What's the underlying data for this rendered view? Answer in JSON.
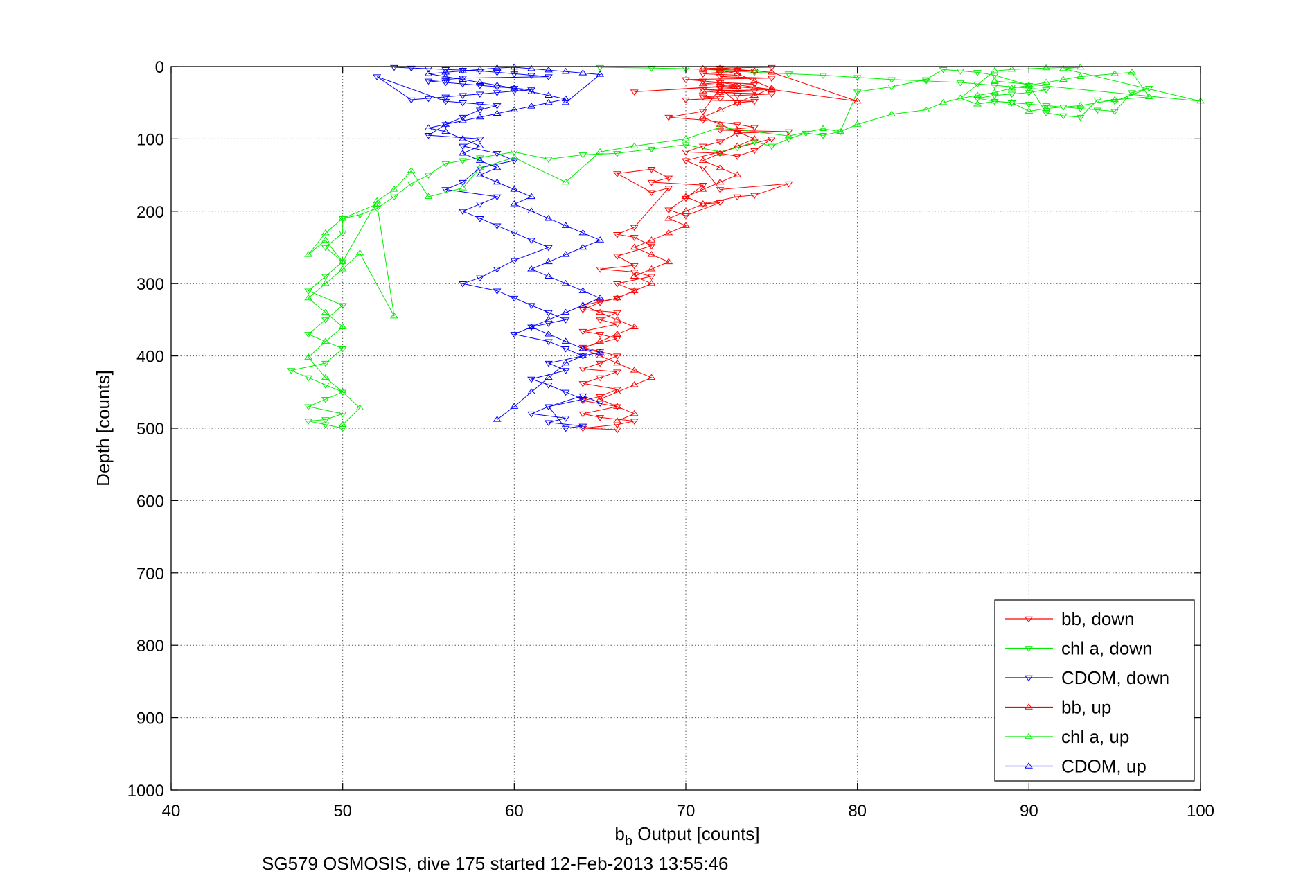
{
  "chart_data": {
    "type": "scatter",
    "xlabel_base": "b",
    "xlabel_sub": "b",
    "xlabel_rest": " Output [counts]",
    "ylabel": "Depth [counts]",
    "caption": "SG579 OSMOSIS, dive 175 started 12-Feb-2013 13:55:46",
    "xlim": [
      40,
      100
    ],
    "ylim": [
      0,
      1000
    ],
    "y_reversed": true,
    "grid": true,
    "legend_position": "bottom-right",
    "x_ticks": [
      "40",
      "50",
      "60",
      "70",
      "80",
      "90",
      "100"
    ],
    "x_tick_values": [
      40,
      50,
      60,
      70,
      80,
      90,
      100
    ],
    "y_ticks": [
      "0",
      "100",
      "200",
      "300",
      "400",
      "500",
      "600",
      "700",
      "800",
      "900",
      "1000"
    ],
    "y_tick_values": [
      0,
      100,
      200,
      300,
      400,
      500,
      600,
      700,
      800,
      900,
      1000
    ],
    "colors": {
      "bb": "#ff0000",
      "chl": "#00ee00",
      "cdom": "#0000ff",
      "axis": "#000000",
      "grid": "#555555"
    },
    "series": [
      {
        "name": "bb, down",
        "color": "#ff0000",
        "marker": "down",
        "connected": true,
        "x": [
          75,
          72,
          71,
          73,
          74,
          72,
          71,
          73,
          72,
          75,
          70,
          71,
          72,
          74,
          73,
          67,
          72,
          73,
          71,
          74,
          72,
          75,
          73,
          71,
          72,
          70,
          74,
          73,
          72,
          71,
          69,
          71,
          73,
          74,
          72,
          76,
          73,
          72,
          71,
          70,
          72,
          73,
          74,
          75,
          70,
          71,
          72,
          76,
          74,
          73,
          71,
          72,
          70,
          69,
          70,
          71,
          68,
          69,
          68,
          66,
          68,
          69,
          67,
          66,
          67,
          68,
          66,
          67,
          65,
          67,
          68,
          66,
          67,
          66,
          65,
          64,
          66,
          65,
          66,
          64,
          65,
          66,
          64,
          65,
          66,
          65,
          64,
          66,
          65,
          64,
          66,
          65,
          64,
          66,
          64,
          65,
          67,
          66,
          64,
          66
        ],
        "y": [
          1,
          2,
          3,
          5,
          6,
          8,
          10,
          12,
          14,
          16,
          18,
          20,
          22,
          24,
          26,
          35,
          28,
          30,
          32,
          34,
          36,
          38,
          40,
          42,
          44,
          46,
          48,
          50,
          30,
          62,
          70,
          74,
          80,
          84,
          88,
          90,
          92,
          104,
          110,
          118,
          120,
          124,
          116,
          100,
          130,
          140,
          170,
          162,
          178,
          180,
          190,
          188,
          206,
          198,
          182,
          164,
          160,
          154,
          142,
          148,
          174,
          168,
          222,
          232,
          236,
          248,
          262,
          275,
          280,
          284,
          290,
          300,
          310,
          320,
          326,
          336,
          340,
          350,
          356,
          366,
          370,
          376,
          388,
          394,
          400,
          410,
          418,
          422,
          430,
          438,
          446,
          456,
          462,
          470,
          480,
          485,
          490,
          495,
          500,
          502
        ]
      },
      {
        "name": "chl a, down",
        "color": "#00ee00",
        "marker": "down",
        "connected": true,
        "x": [
          65,
          68,
          70,
          72,
          74,
          76,
          78,
          80,
          82,
          84,
          86,
          87,
          88,
          89,
          90,
          91,
          90,
          89,
          88,
          87,
          88,
          89,
          90,
          91,
          92,
          93,
          94,
          95,
          96,
          97,
          95,
          94,
          93,
          92,
          91,
          90,
          88,
          87,
          86,
          85,
          84,
          82,
          80,
          79,
          78,
          77,
          76,
          75,
          74,
          73,
          72,
          70,
          68,
          66,
          64,
          62,
          60,
          58,
          57,
          56,
          55,
          54,
          53,
          52,
          51,
          50,
          50,
          49,
          50,
          49,
          48,
          50,
          49,
          48,
          50,
          49,
          47,
          48,
          49,
          50,
          49,
          48,
          50,
          49,
          48,
          49,
          50
        ],
        "y": [
          1,
          2,
          3,
          5,
          8,
          10,
          12,
          15,
          18,
          20,
          22,
          24,
          26,
          28,
          30,
          32,
          36,
          38,
          40,
          44,
          48,
          50,
          52,
          54,
          56,
          58,
          60,
          62,
          36,
          30,
          48,
          46,
          70,
          68,
          64,
          26,
          12,
          8,
          6,
          4,
          18,
          28,
          35,
          90,
          95,
          92,
          100,
          110,
          104,
          112,
          118,
          108,
          114,
          120,
          122,
          128,
          118,
          126,
          130,
          134,
          150,
          162,
          180,
          196,
          205,
          210,
          230,
          250,
          270,
          290,
          310,
          330,
          350,
          370,
          390,
          410,
          420,
          430,
          440,
          450,
          460,
          470,
          480,
          488,
          490,
          495,
          500
        ]
      },
      {
        "name": "CDOM, down",
        "color": "#0000ff",
        "marker": "down",
        "connected": true,
        "x": [
          53,
          54,
          55,
          56,
          57,
          58,
          59,
          60,
          61,
          62,
          57,
          56,
          55,
          56,
          57,
          58,
          59,
          60,
          61,
          60,
          59,
          58,
          57,
          56,
          55,
          54,
          52,
          56,
          57,
          58,
          59,
          58,
          57,
          56,
          55,
          58,
          57,
          59,
          60,
          58,
          57,
          56,
          59,
          58,
          57,
          58,
          59,
          60,
          61,
          62,
          60,
          59,
          58,
          57,
          59,
          60,
          61,
          62,
          63,
          62,
          61,
          60,
          62,
          63,
          64,
          62,
          63,
          61,
          62,
          63,
          64,
          62,
          61,
          63,
          62,
          64,
          63,
          62,
          64,
          65
        ],
        "y": [
          1,
          2,
          3,
          4,
          5,
          6,
          8,
          10,
          12,
          14,
          16,
          18,
          20,
          22,
          24,
          26,
          28,
          30,
          32,
          34,
          36,
          38,
          40,
          42,
          44,
          46,
          14,
          48,
          50,
          52,
          54,
          60,
          70,
          80,
          95,
          100,
          110,
          120,
          130,
          140,
          160,
          170,
          180,
          190,
          200,
          210,
          220,
          230,
          240,
          250,
          268,
          280,
          292,
          300,
          310,
          320,
          330,
          340,
          350,
          355,
          360,
          370,
          380,
          390,
          400,
          410,
          420,
          432,
          440,
          450,
          460,
          470,
          480,
          486,
          492,
          497,
          500,
          470,
          455,
          465
        ]
      },
      {
        "name": "bb, up",
        "color": "#ff0000",
        "marker": "up",
        "connected": true,
        "x": [
          66,
          67,
          66,
          65,
          66,
          67,
          68,
          67,
          66,
          65,
          64,
          65,
          66,
          67,
          66,
          65,
          64,
          66,
          67,
          68,
          67,
          68,
          69,
          68,
          67,
          68,
          69,
          70,
          69,
          70,
          71,
          70,
          71,
          72,
          73,
          72,
          71,
          72,
          73,
          74,
          73,
          72,
          71,
          72,
          73,
          74,
          75,
          74,
          73,
          72,
          71,
          72,
          73,
          74,
          75,
          80,
          72,
          71,
          72,
          73,
          74,
          75,
          71,
          72
        ],
        "y": [
          490,
          480,
          470,
          460,
          450,
          440,
          430,
          420,
          410,
          400,
          390,
          380,
          370,
          360,
          350,
          340,
          330,
          320,
          310,
          300,
          290,
          280,
          270,
          260,
          250,
          240,
          230,
          220,
          210,
          200,
          190,
          180,
          170,
          160,
          150,
          140,
          130,
          120,
          110,
          100,
          90,
          80,
          70,
          60,
          50,
          40,
          30,
          20,
          10,
          5,
          3,
          2,
          4,
          6,
          8,
          48,
          22,
          24,
          26,
          28,
          30,
          32,
          34,
          36
        ]
      },
      {
        "name": "chl a, up",
        "color": "#00ee00",
        "marker": "up",
        "connected": true,
        "x": [
          50,
          51,
          50,
          49,
          48,
          49,
          50,
          49,
          48,
          49,
          50,
          51,
          53,
          52,
          50,
          49,
          48,
          49,
          50,
          52,
          53,
          54,
          55,
          57,
          58,
          60,
          63,
          65,
          67,
          70,
          72,
          76,
          78,
          79,
          80,
          82,
          84,
          85,
          86,
          87,
          88,
          89,
          90,
          91,
          92,
          93,
          95,
          96,
          97,
          95,
          93,
          91,
          90,
          89,
          88,
          87,
          86,
          88,
          89,
          91,
          93,
          92,
          100,
          88
        ],
        "y": [
          495,
          472,
          450,
          430,
          402,
          380,
          360,
          340,
          320,
          300,
          280,
          258,
          345,
          190,
          210,
          230,
          260,
          240,
          270,
          186,
          170,
          144,
          180,
          168,
          140,
          126,
          160,
          118,
          110,
          100,
          84,
          96,
          86,
          90,
          80,
          66,
          60,
          50,
          44,
          40,
          36,
          30,
          26,
          22,
          18,
          14,
          10,
          8,
          42,
          46,
          54,
          58,
          62,
          50,
          48,
          52,
          44,
          6,
          4,
          2,
          1,
          3,
          48,
          20
        ]
      },
      {
        "name": "CDOM, up",
        "color": "#0000ff",
        "marker": "up",
        "connected": true,
        "x": [
          59,
          60,
          61,
          62,
          63,
          64,
          65,
          64,
          63,
          62,
          61,
          62,
          63,
          64,
          65,
          64,
          63,
          62,
          61,
          62,
          63,
          64,
          65,
          64,
          63,
          62,
          61,
          60,
          61,
          60,
          59,
          58,
          59,
          58,
          57,
          58,
          57,
          56,
          55,
          56,
          57,
          58,
          59,
          60,
          61,
          62,
          63,
          62,
          61,
          60,
          59,
          58,
          57,
          56,
          55,
          56,
          57,
          58,
          59,
          60,
          61,
          62,
          63,
          64,
          65,
          63
        ],
        "y": [
          488,
          470,
          450,
          430,
          410,
          400,
          395,
          390,
          380,
          370,
          360,
          350,
          340,
          330,
          320,
          310,
          300,
          290,
          280,
          270,
          260,
          250,
          240,
          230,
          220,
          210,
          200,
          190,
          180,
          170,
          160,
          150,
          140,
          130,
          120,
          110,
          100,
          90,
          85,
          80,
          75,
          70,
          65,
          60,
          55,
          50,
          45,
          40,
          35,
          30,
          26,
          22,
          18,
          14,
          10,
          8,
          6,
          4,
          2,
          1,
          3,
          5,
          7,
          9,
          11,
          50
        ]
      }
    ]
  }
}
